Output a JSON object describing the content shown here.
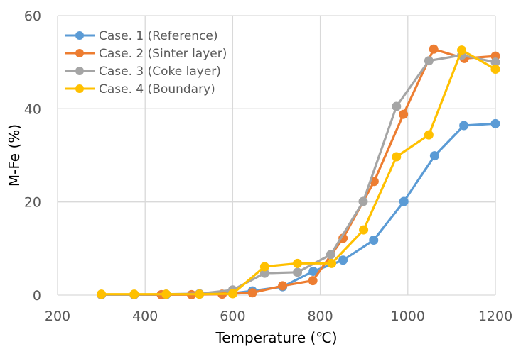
{
  "chart_data": {
    "type": "line",
    "title": "",
    "xlabel": "Temperature (℃)",
    "ylabel": "M-Fe (%)",
    "xlim": [
      200,
      1200
    ],
    "ylim": [
      0,
      60
    ],
    "xticks": [
      200,
      400,
      600,
      800,
      1000,
      1200
    ],
    "yticks": [
      0,
      20,
      40,
      60
    ],
    "xtick_labels": [
      "200",
      "400",
      "600",
      "800",
      "1000",
      "1200"
    ],
    "ytick_labels": [
      "0",
      "20",
      "40",
      "60"
    ],
    "grid": true,
    "legend_position": "top-left",
    "series": [
      {
        "name": "Case. 1 (Reference)",
        "color": "#5B9BD5",
        "x": [
          300,
          375,
          448,
          524,
          600,
          645,
          714,
          784,
          852,
          922,
          991,
          1061,
          1128,
          1200
        ],
        "y": [
          0.1,
          0.1,
          0.1,
          0.2,
          0.4,
          0.9,
          1.8,
          5.1,
          7.5,
          11.8,
          20.1,
          29.9,
          36.4,
          36.8
        ]
      },
      {
        "name": "Case. 2 (Sinter layer)",
        "color": "#ED7D31",
        "x": [
          300,
          375,
          437,
          506,
          576,
          645,
          714,
          783,
          852,
          923,
          990,
          1059,
          1129,
          1200
        ],
        "y": [
          0.1,
          0.1,
          0.1,
          0.1,
          0.2,
          0.5,
          2.0,
          3.1,
          12.2,
          24.4,
          38.8,
          52.8,
          50.8,
          51.3
        ]
      },
      {
        "name": "Case. 3 (Coke layer)",
        "color": "#A5A5A5",
        "x": [
          300,
          375,
          448,
          524,
          600,
          673,
          748,
          824,
          898,
          974,
          1048,
          1123,
          1200
        ],
        "y": [
          0.1,
          0.1,
          0.2,
          0.3,
          1.1,
          4.7,
          4.9,
          8.7,
          20.1,
          40.5,
          50.3,
          51.5,
          50.0
        ]
      },
      {
        "name": "Case. 4 (Boundary)",
        "color": "#FFC000",
        "x": [
          300,
          375,
          448,
          524,
          600,
          673,
          748,
          826,
          899,
          974,
          1048,
          1123,
          1200
        ],
        "y": [
          0.2,
          0.2,
          0.2,
          0.2,
          0.3,
          6.1,
          6.8,
          6.8,
          14.0,
          29.7,
          34.4,
          52.6,
          48.5
        ]
      }
    ]
  }
}
